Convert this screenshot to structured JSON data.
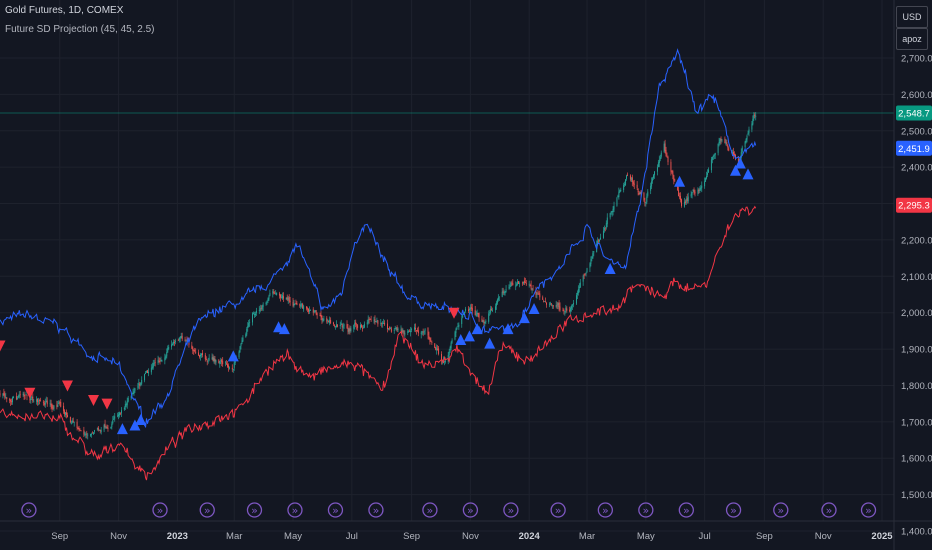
{
  "header": {
    "title": "Gold Futures, 1D, COMEX",
    "indicator": "Future SD Projection (45, 45, 2.5)"
  },
  "controls": {
    "currency": "USD",
    "user": "apoz"
  },
  "colors": {
    "background": "#131722",
    "grid": "#1e222d",
    "candle_up": "#26a69a",
    "candle_down": "#ef5350",
    "upper_band": "#2962ff",
    "lower_band": "#f23645",
    "signal_up": "#2962ff",
    "signal_down": "#f23645",
    "price_label": "#089981",
    "axis_text": "#b2b5be",
    "event_icon": "#7e57c2"
  },
  "chart_data": {
    "type": "candlestick",
    "title": "",
    "x_ticks": [
      "Sep",
      "Nov",
      "2023",
      "Mar",
      "May",
      "Jul",
      "Sep",
      "Nov",
      "2024",
      "Mar",
      "May",
      "Jul",
      "Sep",
      "Nov",
      "2025"
    ],
    "y_ticks": [
      "2,700.0",
      "2,600.0",
      "2,500.0",
      "2,400.0",
      "2,300.0",
      "2,200.0",
      "2,100.0",
      "2,000.0",
      "1,900.0",
      "1,800.0",
      "1,700.0",
      "1,600.0",
      "1,500.0",
      "1,400.0"
    ],
    "ylim": [
      1400,
      2760
    ],
    "last_price_labels": [
      {
        "name": "price",
        "value": "2,548.7"
      },
      {
        "name": "upper",
        "value": "2,451.9"
      },
      {
        "name": "lower",
        "value": "2,295.3"
      }
    ],
    "price_line": 2548.7,
    "series": [
      {
        "role": "price_close",
        "x": [
          "2022-07-01",
          "2022-08-01",
          "2022-09-01",
          "2022-09-27",
          "2022-11-03",
          "2022-12-01",
          "2023-01-01",
          "2023-02-01",
          "2023-02-27",
          "2023-03-20",
          "2023-04-13",
          "2023-05-04",
          "2023-06-01",
          "2023-06-30",
          "2023-07-20",
          "2023-08-21",
          "2023-09-15",
          "2023-10-06",
          "2023-10-27",
          "2023-11-15",
          "2023-12-04",
          "2023-12-27",
          "2024-01-15",
          "2024-02-14",
          "2024-03-08",
          "2024-04-12",
          "2024-04-30",
          "2024-05-20",
          "2024-06-07",
          "2024-07-01",
          "2024-07-17",
          "2024-08-05",
          "2024-08-23"
        ],
        "values": [
          1780,
          1760,
          1740,
          1660,
          1720,
          1830,
          1930,
          1880,
          1850,
          1990,
          2060,
          2020,
          1985,
          1950,
          1980,
          1940,
          1950,
          1860,
          2020,
          1980,
          2060,
          2090,
          2030,
          2010,
          2170,
          2390,
          2310,
          2450,
          2300,
          2360,
          2480,
          2420,
          2548.7
        ]
      },
      {
        "name": "Upper band",
        "x": [
          "2022-07-01",
          "2022-08-01",
          "2022-09-01",
          "2022-10-01",
          "2022-11-01",
          "2022-11-28",
          "2022-12-20",
          "2023-01-20",
          "2023-02-14",
          "2023-03-10",
          "2023-04-10",
          "2023-05-06",
          "2023-06-01",
          "2023-06-20",
          "2023-07-05",
          "2023-07-16",
          "2023-08-10",
          "2023-08-31",
          "2023-09-30",
          "2023-10-25",
          "2023-11-20",
          "2023-12-15",
          "2024-01-10",
          "2024-02-01",
          "2024-03-01",
          "2024-03-20",
          "2024-04-10",
          "2024-04-25",
          "2024-05-15",
          "2024-06-04",
          "2024-06-23",
          "2024-07-10",
          "2024-07-28",
          "2024-08-05",
          "2024-08-23"
        ],
        "values": [
          1980,
          1990,
          1960,
          1890,
          1850,
          1700,
          1770,
          1960,
          2010,
          2030,
          2090,
          2190,
          2000,
          2050,
          2210,
          2240,
          2100,
          2040,
          2010,
          2000,
          1950,
          1950,
          2080,
          2120,
          2240,
          2150,
          2130,
          2300,
          2620,
          2710,
          2560,
          2600,
          2450,
          2430,
          2451.9
        ]
      },
      {
        "name": "Lower band",
        "x": [
          "2022-07-01",
          "2022-08-01",
          "2022-09-01",
          "2022-10-10",
          "2022-11-01",
          "2022-11-28",
          "2022-12-31",
          "2023-01-20",
          "2023-02-15",
          "2023-03-10",
          "2023-04-04",
          "2023-04-25",
          "2023-05-20",
          "2023-06-15",
          "2023-07-05",
          "2023-08-01",
          "2023-08-21",
          "2023-09-10",
          "2023-10-01",
          "2023-10-19",
          "2023-11-03",
          "2023-11-20",
          "2023-12-01",
          "2023-12-31",
          "2024-01-31",
          "2024-02-29",
          "2024-03-31",
          "2024-04-20",
          "2024-05-15",
          "2024-06-01",
          "2024-06-30",
          "2024-07-17",
          "2024-07-31",
          "2024-08-23"
        ],
        "values": [
          1720,
          1720,
          1700,
          1590,
          1650,
          1550,
          1650,
          1690,
          1720,
          1740,
          1850,
          1880,
          1820,
          1850,
          1860,
          1780,
          1940,
          1860,
          1860,
          1900,
          1840,
          1760,
          1900,
          1870,
          1950,
          2000,
          2010,
          2080,
          2040,
          2080,
          2070,
          2180,
          2270,
          2295.3
        ]
      }
    ],
    "signals": {
      "up": [
        {
          "date": "2022-11-05",
          "price": 1680
        },
        {
          "date": "2022-11-18",
          "price": 1690
        },
        {
          "date": "2022-11-24",
          "price": 1705
        },
        {
          "date": "2023-02-28",
          "price": 1880
        },
        {
          "date": "2023-04-16",
          "price": 1960
        },
        {
          "date": "2023-04-22",
          "price": 1955
        },
        {
          "date": "2023-10-22",
          "price": 1925
        },
        {
          "date": "2023-10-31",
          "price": 1935
        },
        {
          "date": "2023-11-08",
          "price": 1955
        },
        {
          "date": "2023-11-21",
          "price": 1915
        },
        {
          "date": "2023-12-10",
          "price": 1955
        },
        {
          "date": "2023-12-27",
          "price": 1985
        },
        {
          "date": "2024-01-06",
          "price": 2010
        },
        {
          "date": "2024-03-25",
          "price": 2120
        },
        {
          "date": "2024-06-05",
          "price": 2360
        },
        {
          "date": "2024-08-02",
          "price": 2390
        },
        {
          "date": "2024-08-07",
          "price": 2410
        },
        {
          "date": "2024-08-15",
          "price": 2380
        }
      ],
      "down": [
        {
          "date": "2022-07-01",
          "price": 1910
        },
        {
          "date": "2022-08-01",
          "price": 1780
        },
        {
          "date": "2022-09-09",
          "price": 1800
        },
        {
          "date": "2022-10-06",
          "price": 1760
        },
        {
          "date": "2022-10-20",
          "price": 1750
        },
        {
          "date": "2023-10-15",
          "price": 2000
        }
      ]
    },
    "event_markers": {
      "glyph": "»",
      "dates": [
        "2022-07-31",
        "2022-12-14",
        "2023-02-01",
        "2023-03-22",
        "2023-05-03",
        "2023-06-14",
        "2023-07-26",
        "2023-09-20",
        "2023-11-01",
        "2023-12-13",
        "2024-01-31",
        "2024-03-20",
        "2024-05-01",
        "2024-06-12",
        "2024-07-31",
        "2024-09-18",
        "2024-11-07",
        "2024-12-18"
      ]
    }
  }
}
